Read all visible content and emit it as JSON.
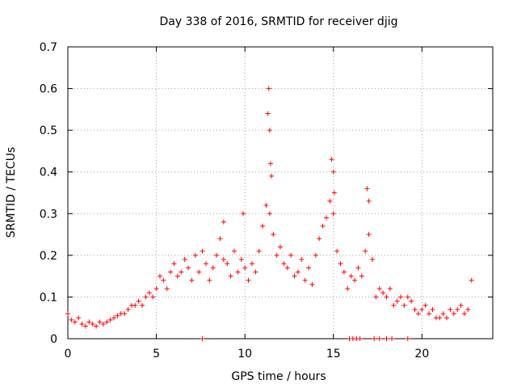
{
  "chart_data": {
    "type": "scatter",
    "title": "Day 338 of 2016, SRMTID for receiver djig",
    "xlabel": "GPS time / hours",
    "ylabel": "SRMTID / TECUs",
    "xlim": [
      0,
      24
    ],
    "ylim": [
      0,
      0.7
    ],
    "x_ticks": [
      0,
      5,
      10,
      15,
      20
    ],
    "x_tick_labels": [
      "0",
      "5",
      "10",
      "15",
      "20"
    ],
    "y_ticks": [
      0,
      0.1,
      0.2,
      0.3,
      0.4,
      0.5,
      0.6,
      0.7
    ],
    "y_tick_labels": [
      "0",
      "0.1",
      "0.2",
      "0.3",
      "0.4",
      "0.5",
      "0.6",
      "0.7"
    ],
    "grid": true,
    "marker": "+",
    "marker_color": "#ff0000",
    "series": [
      {
        "name": "SRMTID",
        "x": [
          0.0,
          0.2,
          0.4,
          0.6,
          0.8,
          1.0,
          1.2,
          1.4,
          1.6,
          1.8,
          2.0,
          2.2,
          2.4,
          2.6,
          2.8,
          3.0,
          3.2,
          3.4,
          3.6,
          3.8,
          4.0,
          4.2,
          4.4,
          4.6,
          4.8,
          5.0,
          5.2,
          5.4,
          5.6,
          5.8,
          6.0,
          6.2,
          6.4,
          6.6,
          6.8,
          7.0,
          7.2,
          7.4,
          7.6,
          7.8,
          8.0,
          8.2,
          8.4,
          8.6,
          8.8,
          9.0,
          9.2,
          9.4,
          9.6,
          9.8,
          10.0,
          10.2,
          10.4,
          10.6,
          10.8,
          11.0,
          11.2,
          11.4,
          11.6,
          11.8,
          12.0,
          12.2,
          12.4,
          12.6,
          12.8,
          13.0,
          13.2,
          13.4,
          13.6,
          13.8,
          14.0,
          14.2,
          14.4,
          14.6,
          14.8,
          15.0,
          15.2,
          15.4,
          15.6,
          15.8,
          16.0,
          16.2,
          16.4,
          16.6,
          16.8,
          17.0,
          17.2,
          17.4,
          17.6,
          17.8,
          18.0,
          18.2,
          18.4,
          18.6,
          18.8,
          19.0,
          19.2,
          19.4,
          19.6,
          19.8,
          20.0,
          20.2,
          20.4,
          20.6,
          20.8,
          21.0,
          21.2,
          21.4,
          21.6,
          21.8,
          22.0,
          22.2,
          22.4,
          22.6,
          22.8,
          11.3,
          11.35,
          11.4,
          11.45,
          11.5,
          14.9,
          15.0,
          15.05,
          16.9,
          17.0,
          8.8,
          9.9,
          7.6,
          15.9,
          16.1,
          16.3,
          16.5,
          17.3,
          17.6,
          18.0,
          18.3,
          19.2
        ],
        "y": [
          0.06,
          0.045,
          0.04,
          0.05,
          0.035,
          0.03,
          0.04,
          0.035,
          0.03,
          0.04,
          0.035,
          0.04,
          0.045,
          0.05,
          0.055,
          0.06,
          0.06,
          0.07,
          0.08,
          0.08,
          0.09,
          0.08,
          0.1,
          0.11,
          0.1,
          0.12,
          0.15,
          0.14,
          0.12,
          0.16,
          0.18,
          0.15,
          0.16,
          0.19,
          0.17,
          0.14,
          0.2,
          0.16,
          0.21,
          0.18,
          0.14,
          0.17,
          0.2,
          0.24,
          0.19,
          0.18,
          0.15,
          0.21,
          0.16,
          0.19,
          0.17,
          0.14,
          0.18,
          0.16,
          0.21,
          0.27,
          0.32,
          0.3,
          0.25,
          0.2,
          0.22,
          0.18,
          0.17,
          0.2,
          0.15,
          0.16,
          0.19,
          0.14,
          0.17,
          0.13,
          0.2,
          0.24,
          0.27,
          0.29,
          0.33,
          0.3,
          0.21,
          0.18,
          0.16,
          0.12,
          0.15,
          0.14,
          0.17,
          0.15,
          0.21,
          0.25,
          0.19,
          0.1,
          0.12,
          0.11,
          0.1,
          0.12,
          0.08,
          0.09,
          0.1,
          0.08,
          0.1,
          0.09,
          0.07,
          0.06,
          0.07,
          0.08,
          0.06,
          0.07,
          0.05,
          0.05,
          0.06,
          0.05,
          0.07,
          0.06,
          0.07,
          0.08,
          0.06,
          0.07,
          0.14,
          0.54,
          0.6,
          0.5,
          0.42,
          0.39,
          0.43,
          0.4,
          0.35,
          0.36,
          0.33,
          0.28,
          0.3,
          0.0,
          0.0,
          0.0,
          0.0,
          0.0,
          0.0,
          0.0,
          0.0,
          0.0,
          0.0
        ]
      }
    ]
  }
}
